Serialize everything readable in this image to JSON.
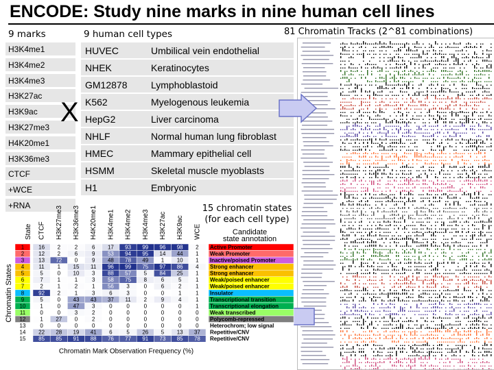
{
  "title": "ENCODE: Study nine marks in nine human cell lines",
  "marks_header": "9 marks",
  "marks": [
    "H3K4me1",
    "H3K4me2",
    "H3K4me3",
    "H3K27ac",
    "H3K9ac",
    "H3K27me3",
    "H4K20me1",
    "H3K36me3",
    "CTCF",
    "+WCE",
    "+RNA"
  ],
  "cells_header": "9 human cell types",
  "cells": [
    {
      "code": "HUVEC",
      "desc": "Umbilical vein endothelial"
    },
    {
      "code": "NHEK",
      "desc": "Keratinocytes"
    },
    {
      "code": "GM12878",
      "desc": "Lymphoblastoid"
    },
    {
      "code": "K562",
      "desc": "Myelogenous leukemia"
    },
    {
      "code": "HepG2",
      "desc": "Liver carcinoma"
    },
    {
      "code": "NHLF",
      "desc": "Normal human lung fibroblast"
    },
    {
      "code": "HMEC",
      "desc": "Mammary epithelial cell"
    },
    {
      "code": "HSMM",
      "desc": "Skeletal muscle myoblasts"
    },
    {
      "code": "H1",
      "desc": "Embryonic"
    }
  ],
  "times_symbol": "X",
  "tracks_label": "81 Chromatin Tracks (2^81 combinations)",
  "states_label_line1": "15 chromatin states",
  "states_label_line2": "(for each cell type)",
  "heatmap": {
    "y_title": "Chromatin States",
    "state_col_header": "State",
    "x_title": "Chromatin Mark Observation Frequency (%)",
    "annotation_header_line1": "Candidate",
    "annotation_header_line2": "state annotation",
    "columns": [
      "CTCF",
      "H3K27me3",
      "H3K36me3",
      "H4K20me1",
      "H3K4me1",
      "H3K4me2",
      "H3K4me3",
      "H3K27ac",
      "H3K9ac",
      "WCE"
    ],
    "states": [
      {
        "n": "1",
        "vals": [
          "16",
          "2",
          "2",
          "6",
          "17",
          "93",
          "99",
          "96",
          "98",
          "2"
        ],
        "annot": "Active Promoter",
        "color": "#ff0000",
        "ncolor": "#ff0000"
      },
      {
        "n": "2",
        "vals": [
          "12",
          "2",
          "6",
          "9",
          "53",
          "94",
          "95",
          "14",
          "44",
          "1"
        ],
        "annot": "Weak Promoter",
        "color": "#ff6a6a",
        "ncolor": "#ff6a6a"
      },
      {
        "n": "3",
        "vals": [
          "13",
          "72",
          "0",
          "9",
          "48",
          "78",
          "49",
          "1",
          "10",
          "1"
        ],
        "annot": "Inactive/poised Promoter",
        "color": "#cd5cdd",
        "ncolor": "#cd5cdd"
      },
      {
        "n": "4",
        "vals": [
          "11",
          "1",
          "15",
          "11",
          "96",
          "99",
          "75",
          "97",
          "86",
          "4"
        ],
        "annot": "Strong enhancer",
        "color": "#fac000",
        "ncolor": "#fac000"
      },
      {
        "n": "5",
        "vals": [
          "5",
          "0",
          "10",
          "3",
          "88",
          "57",
          "5",
          "84",
          "25",
          "1"
        ],
        "annot": "Strong enhancer",
        "color": "#fac000",
        "ncolor": "#fac000"
      },
      {
        "n": "6",
        "vals": [
          "7",
          "1",
          "1",
          "3",
          "58",
          "75",
          "8",
          "6",
          "5",
          "1"
        ],
        "annot": "Weak/poised enhancer",
        "color": "#ffff00",
        "ncolor": "#ffff00"
      },
      {
        "n": "7",
        "vals": [
          "2",
          "1",
          "2",
          "1",
          "56",
          "3",
          "0",
          "6",
          "2",
          "1"
        ],
        "annot": "Weak/poised enhancer",
        "color": "#ffff00",
        "ncolor": "#ffff00"
      },
      {
        "n": "8",
        "vals": [
          "92",
          "2",
          "1",
          "3",
          "6",
          "3",
          "0",
          "0",
          "1",
          "1"
        ],
        "annot": "Insulator",
        "color": "#0abeff",
        "ncolor": "#0abeff"
      },
      {
        "n": "9",
        "vals": [
          "5",
          "0",
          "43",
          "43",
          "37",
          "11",
          "2",
          "9",
          "4",
          "1"
        ],
        "annot": "Transcriptional transition",
        "color": "#00b050",
        "ncolor": "#00b050"
      },
      {
        "n": "10",
        "vals": [
          "1",
          "0",
          "47",
          "3",
          "0",
          "0",
          "0",
          "0",
          "0",
          "1"
        ],
        "annot": "Transcriptional elongation",
        "color": "#00b050",
        "ncolor": "#00b050"
      },
      {
        "n": "11",
        "vals": [
          "0",
          "0",
          "3",
          "2",
          "0",
          "0",
          "0",
          "0",
          "0",
          "0"
        ],
        "annot": "Weak transcribed",
        "color": "#99ff66",
        "ncolor": "#99ff66"
      },
      {
        "n": "12",
        "vals": [
          "1",
          "27",
          "0",
          "2",
          "0",
          "0",
          "0",
          "0",
          "0",
          "0"
        ],
        "annot": "Polycomb-repressed",
        "color": "#7f7f7f",
        "ncolor": "#7f7f7f"
      },
      {
        "n": "13",
        "vals": [
          "0",
          "0",
          "0",
          "0",
          "0",
          "0",
          "0",
          "0",
          "0",
          "0"
        ],
        "annot": "Heterochrom; low signal",
        "color": "#ffffff",
        "ncolor": "#ffffff"
      },
      {
        "n": "14",
        "vals": [
          "22",
          "28",
          "19",
          "41",
          "6",
          "5",
          "26",
          "5",
          "13",
          "37"
        ],
        "annot": "Repetitive/CNV",
        "color": "#ffffff",
        "ncolor": "#ffffff"
      },
      {
        "n": "15",
        "vals": [
          "85",
          "85",
          "91",
          "88",
          "76",
          "77",
          "91",
          "73",
          "85",
          "78"
        ],
        "annot": "Repetitive/CNV",
        "color": "#ffffff",
        "ncolor": "#ffffff"
      }
    ]
  },
  "colors": {
    "box_bg": "#e6e6e6",
    "heat_high": "#1e2f8c",
    "heat_low": "#ffffff",
    "arrow_fill": "#c9cbf2",
    "arrow_stroke": "#6b73c7"
  }
}
